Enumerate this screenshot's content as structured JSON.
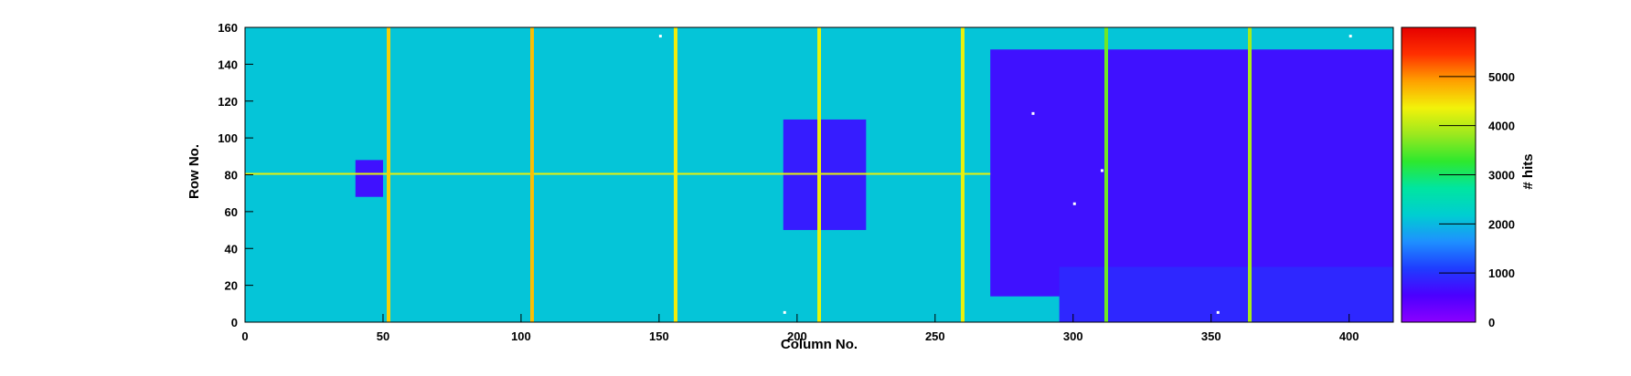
{
  "chart_data": {
    "type": "heatmap",
    "title": "",
    "xlabel": "Column No.",
    "ylabel": "Row No.",
    "zlabel": "# hits",
    "xlim": [
      0,
      416
    ],
    "ylim": [
      0,
      160
    ],
    "zlim": [
      0,
      6000
    ],
    "x_ticks": [
      0,
      50,
      100,
      150,
      200,
      250,
      300,
      350,
      400
    ],
    "y_ticks": [
      0,
      20,
      40,
      60,
      80,
      100,
      120,
      140,
      160
    ],
    "z_ticks": [
      0,
      1000,
      2000,
      3000,
      4000,
      5000
    ],
    "colormap": [
      "#8b00ff",
      "#4b00ff",
      "#1f3cff",
      "#1e90ff",
      "#00ced1",
      "#00e5a0",
      "#2ee82e",
      "#9be81e",
      "#f2f20a",
      "#ffa000",
      "#ff3000",
      "#e60000"
    ],
    "grid": false,
    "background_level": 2100,
    "hot_columns": [
      {
        "column": 52,
        "level": 4600
      },
      {
        "column": 104,
        "level": 4700
      },
      {
        "column": 156,
        "level": 4400
      },
      {
        "column": 208,
        "level": 4300
      },
      {
        "column": 260,
        "level": 4300
      },
      {
        "column": 312,
        "level": 3600
      },
      {
        "column": 364,
        "level": 3900
      }
    ],
    "hot_rows": [
      {
        "row": 80,
        "x_from": 0,
        "x_to": 270,
        "level": 4300
      }
    ],
    "regions": [
      {
        "name": "right-block",
        "x": [
          270,
          416
        ],
        "y": [
          14,
          148
        ],
        "level": 700
      },
      {
        "name": "lower-right-block",
        "x": [
          295,
          416
        ],
        "y": [
          0,
          30
        ],
        "level": 900
      },
      {
        "name": "center-matrix",
        "x": [
          195,
          225
        ],
        "y": [
          50,
          110
        ],
        "level": 800
      },
      {
        "name": "left-pad",
        "x": [
          40,
          50
        ],
        "y": [
          68,
          88
        ],
        "level": 700
      }
    ],
    "dead_pixels": [
      [
        285,
        113
      ],
      [
        300,
        64
      ],
      [
        310,
        82
      ],
      [
        352,
        5
      ],
      [
        195,
        5
      ],
      [
        150,
        155
      ],
      [
        400,
        155
      ]
    ]
  }
}
